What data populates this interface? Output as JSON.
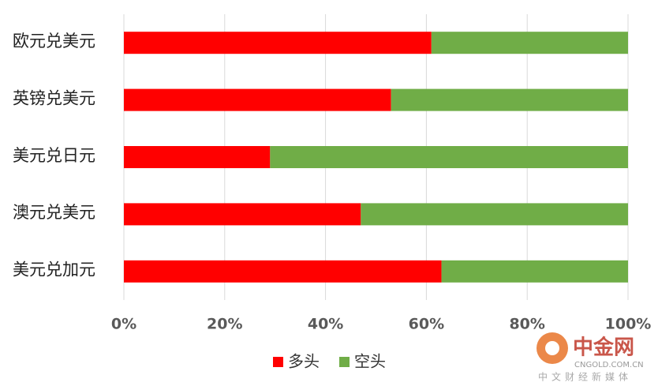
{
  "chart_data": {
    "type": "stacked-bar-horizontal",
    "categories": [
      "欧元兑美元",
      "英镑兑美元",
      "美元兑日元",
      "澳元兑美元",
      "美元兑加元"
    ],
    "series": [
      {
        "name": "多头",
        "color": "#ff0000",
        "values": [
          61,
          53,
          29,
          47,
          63
        ]
      },
      {
        "name": "空头",
        "color": "#70ad47",
        "values": [
          39,
          47,
          71,
          53,
          37
        ]
      }
    ],
    "xlim": [
      0,
      100
    ],
    "xticks": [
      {
        "value": 0,
        "label": "0%"
      },
      {
        "value": 20,
        "label": "20%"
      },
      {
        "value": 40,
        "label": "40%"
      },
      {
        "value": 60,
        "label": "60%"
      },
      {
        "value": 80,
        "label": "80%"
      },
      {
        "value": 100,
        "label": "100%"
      }
    ],
    "grid": true,
    "legend": "bottom"
  },
  "watermark": {
    "title": "中金网",
    "url": "CNGOLD.COM.CN",
    "tagline": "中文财经新媒体"
  }
}
